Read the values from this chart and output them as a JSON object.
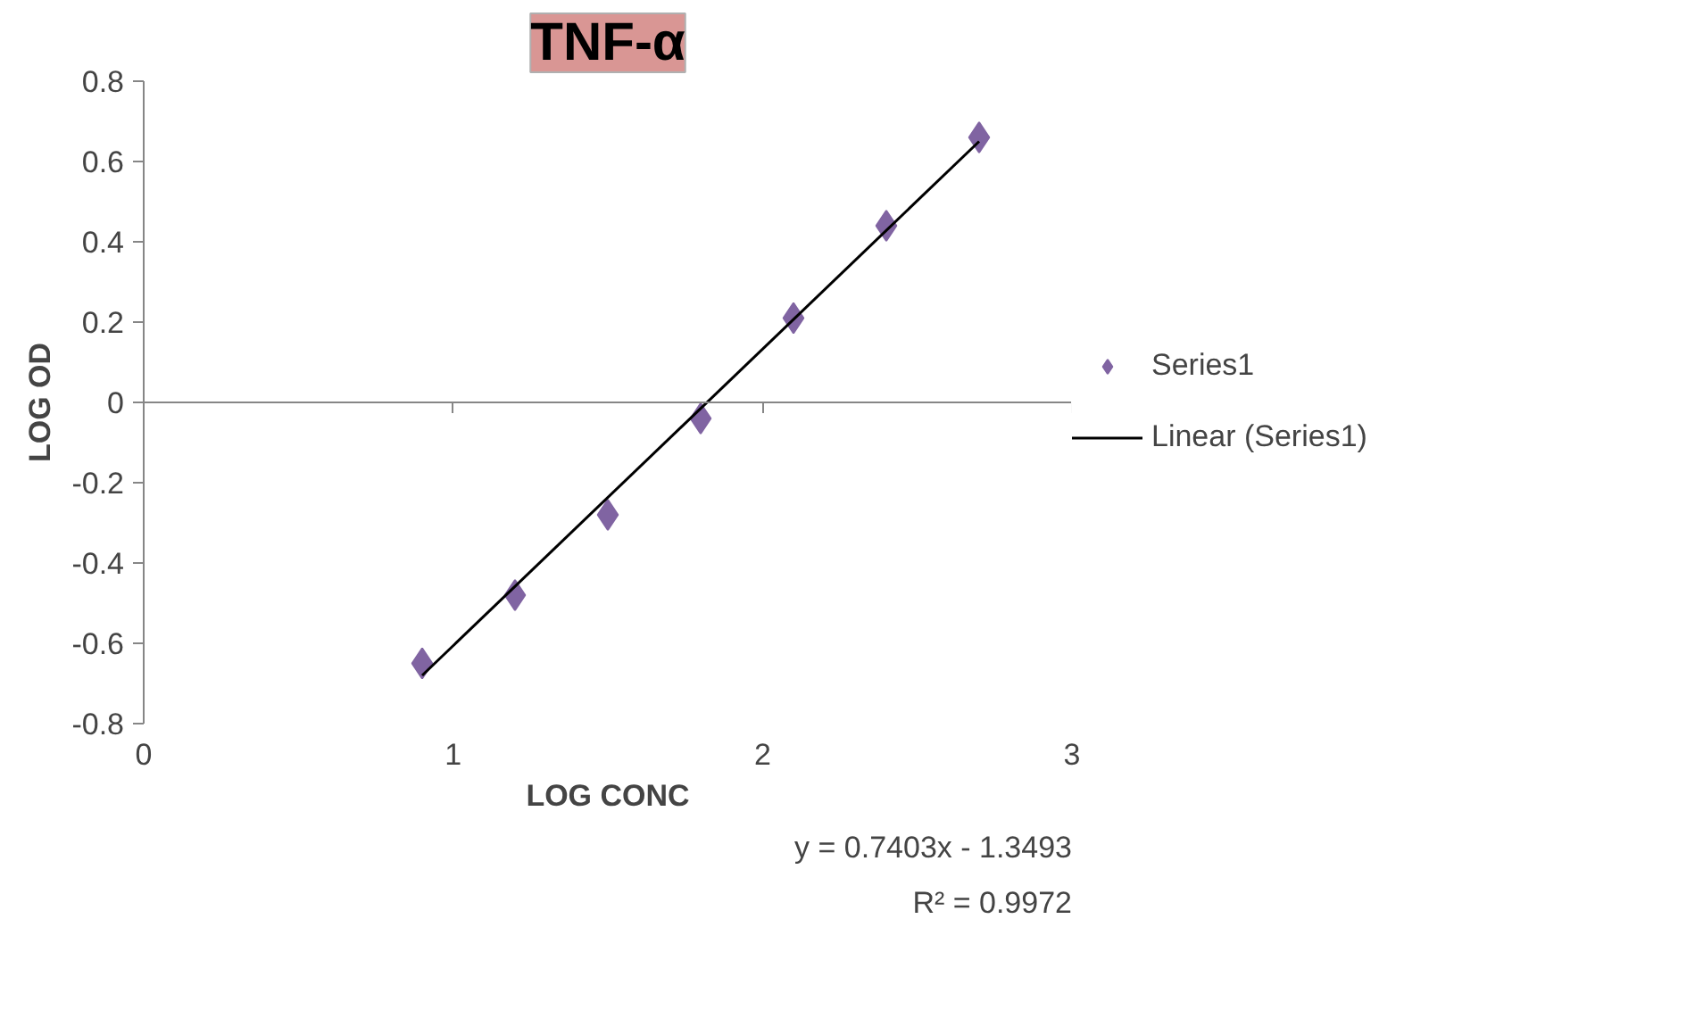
{
  "chart_data": {
    "type": "scatter",
    "title": "TNF-α",
    "xlabel": "LOG CONC",
    "ylabel": "LOG OD",
    "xlim": [
      0,
      3
    ],
    "ylim": [
      -0.8,
      0.8
    ],
    "xticks": [
      0,
      1,
      2,
      3
    ],
    "yticks": [
      -0.8,
      -0.6,
      -0.4,
      -0.2,
      0,
      0.2,
      0.4,
      0.6,
      0.8
    ],
    "x": [
      0.9,
      1.2,
      1.5,
      1.8,
      2.1,
      2.4,
      2.7
    ],
    "series": [
      {
        "name": "Series1",
        "color": "#8064a2",
        "values": [
          -0.65,
          -0.48,
          -0.28,
          -0.04,
          0.21,
          0.44,
          0.66
        ],
        "marker": "diamond"
      },
      {
        "name": "Linear (Series1)",
        "type": "line",
        "color": "#000000",
        "x": [
          0.9,
          2.7
        ],
        "values": [
          -0.68,
          0.65
        ]
      }
    ],
    "annotations": [
      "y = 0.7403x - 1.3493",
      "R² = 0.9972"
    ],
    "legend": "right"
  }
}
